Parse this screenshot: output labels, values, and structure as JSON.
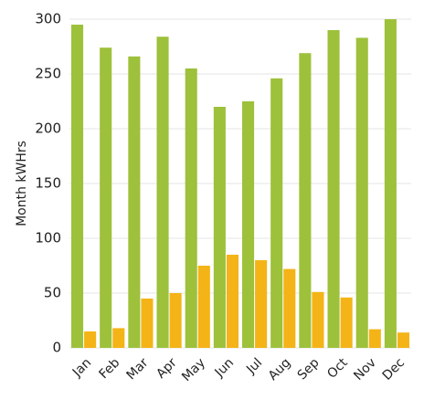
{
  "chart_data": {
    "type": "bar",
    "y_label": "Month kWHrs",
    "categories": [
      "Jan",
      "Feb",
      "Mar",
      "Apr",
      "May",
      "Jun",
      "Jul",
      "Aug",
      "Sep",
      "Oct",
      "Nov",
      "Dec"
    ],
    "series": [
      {
        "color": "#9dc13b",
        "values": [
          295,
          274,
          266,
          284,
          255,
          220,
          225,
          246,
          269,
          290,
          283,
          300
        ]
      },
      {
        "color": "#f4b417",
        "values": [
          15,
          18,
          45,
          50,
          75,
          85,
          80,
          72,
          51,
          46,
          17,
          14
        ]
      }
    ],
    "ylim": [
      0,
      300
    ],
    "yticks": [
      0,
      50,
      100,
      150,
      200,
      250,
      300
    ],
    "grid": true
  }
}
